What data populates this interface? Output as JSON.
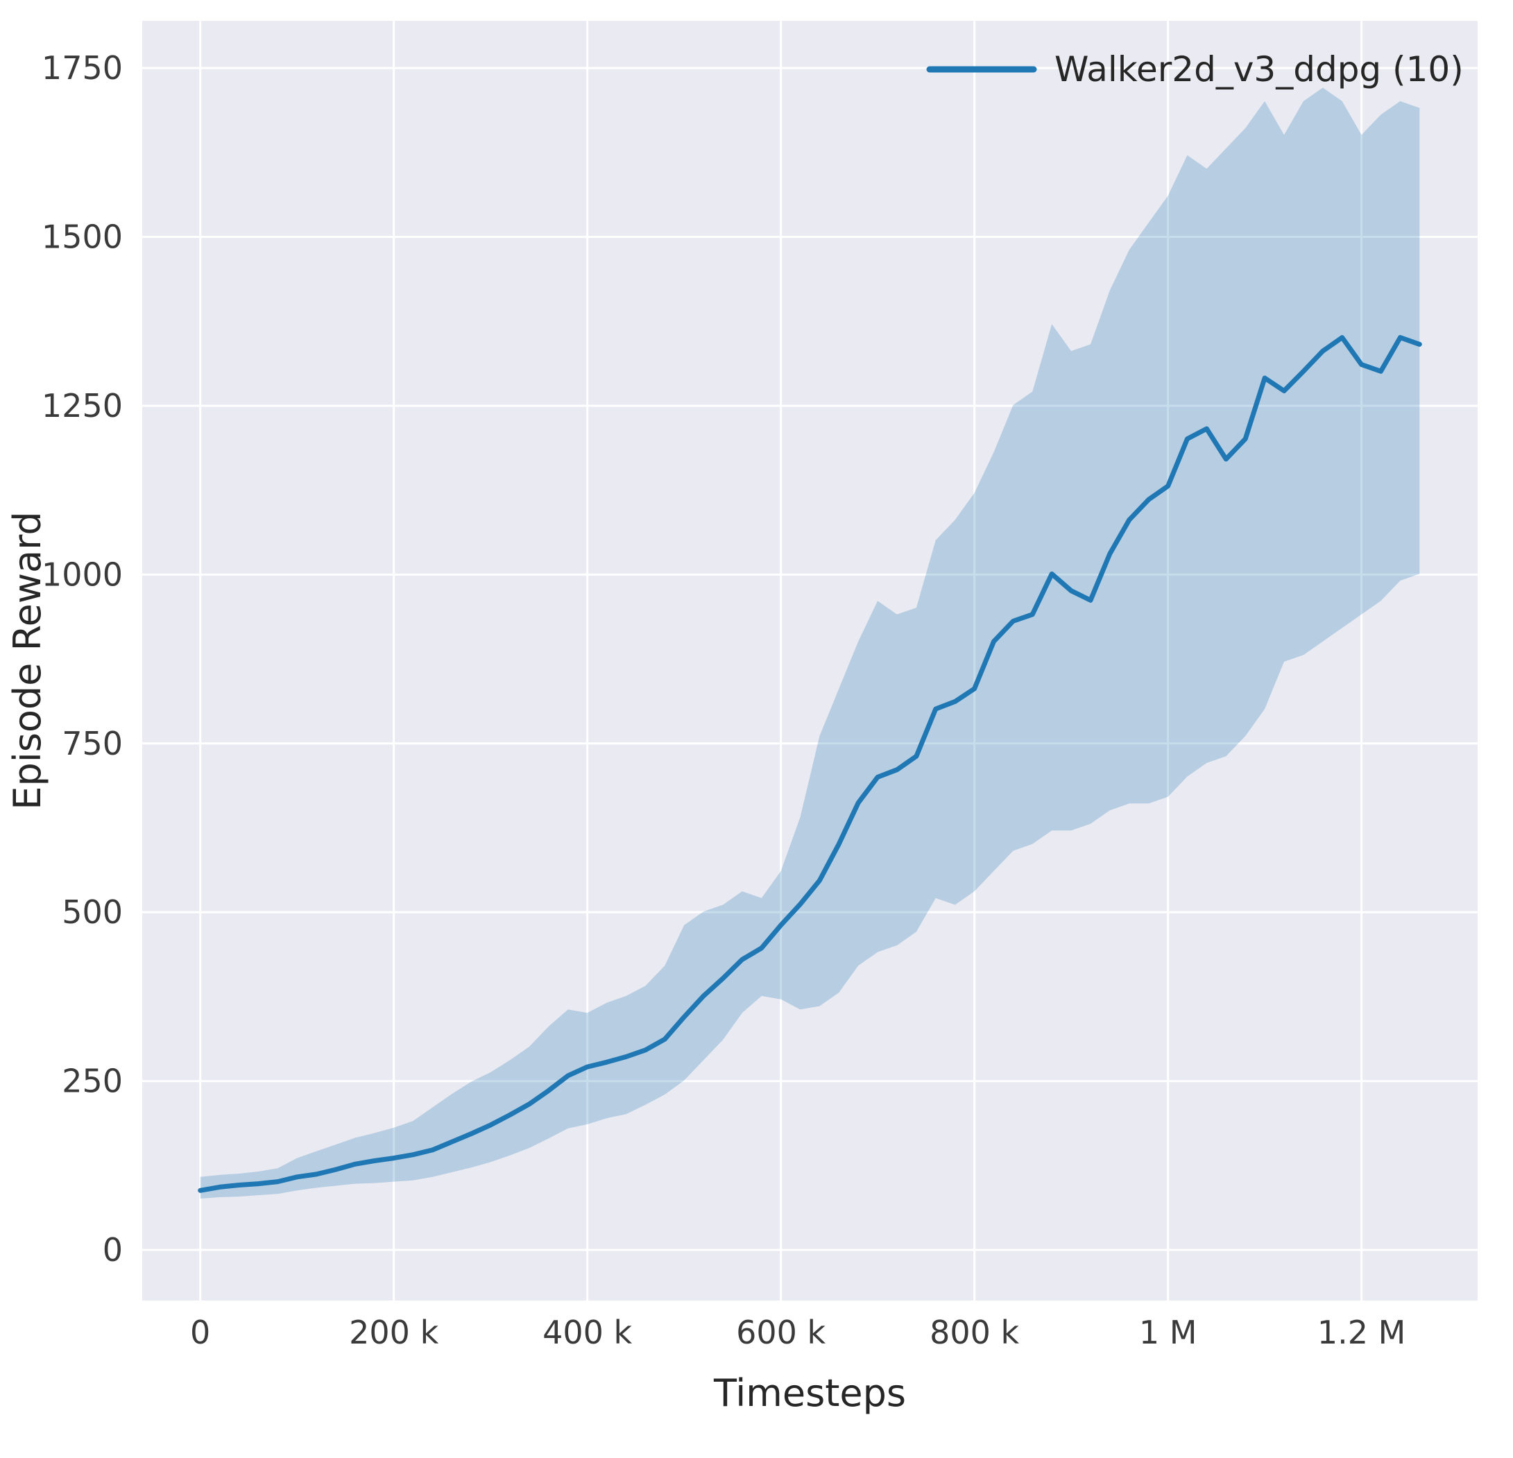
{
  "chart_data": {
    "type": "line",
    "title": "",
    "xlabel": "Timesteps",
    "ylabel": "Episode Reward",
    "legend": [
      {
        "name": "Walker2d_v3_ddpg (10)",
        "color": "#1f77b4"
      }
    ],
    "legend_position": "upper right",
    "grid": true,
    "xlim": [
      -60000,
      1320000
    ],
    "ylim": [
      -75,
      1820
    ],
    "xticks": {
      "values": [
        0,
        200000,
        400000,
        600000,
        800000,
        1000000,
        1200000
      ],
      "labels": [
        "0",
        "200 k",
        "400 k",
        "600 k",
        "800 k",
        "1 M",
        "1.2 M"
      ]
    },
    "yticks": {
      "values": [
        0,
        250,
        500,
        750,
        1000,
        1250,
        1500,
        1750
      ],
      "labels": [
        "0",
        "250",
        "500",
        "750",
        "1000",
        "1250",
        "1500",
        "1750"
      ]
    },
    "colors": {
      "plot_background": "#eaeaf2",
      "gridline": "#ffffff",
      "line": "#1f77b4",
      "band": "#1f77b4",
      "band_opacity": 0.25,
      "text": "#262626",
      "tick_text": "#3a3a3a"
    },
    "series": [
      {
        "name": "Walker2d_v3_ddpg (10)",
        "x": [
          0,
          20000,
          40000,
          60000,
          80000,
          100000,
          120000,
          140000,
          160000,
          180000,
          200000,
          220000,
          240000,
          260000,
          280000,
          300000,
          320000,
          340000,
          360000,
          380000,
          400000,
          420000,
          440000,
          460000,
          480000,
          500000,
          520000,
          540000,
          560000,
          580000,
          600000,
          620000,
          640000,
          660000,
          680000,
          700000,
          720000,
          740000,
          760000,
          780000,
          800000,
          820000,
          840000,
          860000,
          880000,
          900000,
          920000,
          940000,
          960000,
          980000,
          1000000,
          1020000,
          1040000,
          1060000,
          1080000,
          1100000,
          1120000,
          1140000,
          1160000,
          1180000,
          1200000,
          1220000,
          1240000,
          1260000
        ],
        "mean": [
          88,
          93,
          96,
          98,
          101,
          108,
          112,
          119,
          127,
          132,
          136,
          141,
          148,
          160,
          172,
          185,
          200,
          216,
          236,
          258,
          271,
          278,
          286,
          296,
          312,
          345,
          376,
          402,
          430,
          447,
          481,
          512,
          547,
          601,
          662,
          700,
          711,
          731,
          801,
          812,
          831,
          901,
          931,
          941,
          1001,
          976,
          962,
          1031,
          1081,
          1111,
          1131,
          1201,
          1216,
          1171,
          1201,
          1291,
          1272,
          1301,
          1331,
          1351,
          1311,
          1301,
          1351,
          1341
        ],
        "lower": [
          76,
          78,
          79,
          81,
          83,
          88,
          92,
          95,
          98,
          99,
          101,
          103,
          108,
          115,
          122,
          130,
          140,
          151,
          165,
          180,
          186,
          195,
          201,
          215,
          230,
          251,
          281,
          311,
          351,
          376,
          371,
          356,
          361,
          381,
          421,
          441,
          451,
          471,
          521,
          511,
          531,
          561,
          591,
          601,
          621,
          621,
          631,
          651,
          661,
          661,
          671,
          701,
          721,
          731,
          761,
          801,
          871,
          881,
          901,
          921,
          941,
          961,
          991,
          1001
        ],
        "upper": [
          108,
          111,
          113,
          116,
          121,
          136,
          146,
          156,
          166,
          173,
          181,
          191,
          211,
          231,
          249,
          263,
          281,
          301,
          331,
          356,
          351,
          366,
          376,
          391,
          421,
          481,
          501,
          511,
          531,
          521,
          561,
          641,
          761,
          831,
          901,
          961,
          941,
          951,
          1051,
          1081,
          1121,
          1181,
          1251,
          1271,
          1371,
          1331,
          1341,
          1421,
          1481,
          1521,
          1561,
          1621,
          1601,
          1631,
          1661,
          1701,
          1651,
          1701,
          1721,
          1701,
          1651,
          1681,
          1701,
          1691
        ]
      }
    ]
  }
}
